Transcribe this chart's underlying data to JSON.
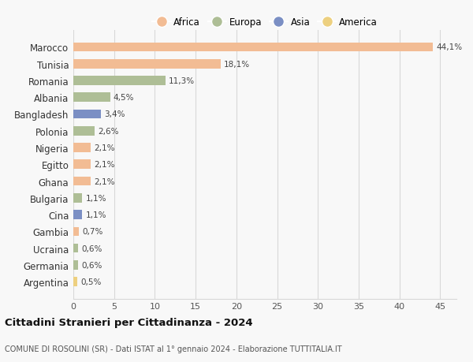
{
  "categories": [
    "Marocco",
    "Tunisia",
    "Romania",
    "Albania",
    "Bangladesh",
    "Polonia",
    "Nigeria",
    "Egitto",
    "Ghana",
    "Bulgaria",
    "Cina",
    "Gambia",
    "Ucraina",
    "Germania",
    "Argentina"
  ],
  "values": [
    44.1,
    18.1,
    11.3,
    4.5,
    3.4,
    2.6,
    2.1,
    2.1,
    2.1,
    1.1,
    1.1,
    0.7,
    0.6,
    0.6,
    0.5
  ],
  "labels": [
    "44,1%",
    "18,1%",
    "11,3%",
    "4,5%",
    "3,4%",
    "2,6%",
    "2,1%",
    "2,1%",
    "2,1%",
    "1,1%",
    "1,1%",
    "0,7%",
    "0,6%",
    "0,6%",
    "0,5%"
  ],
  "colors": [
    "#F2BC94",
    "#F2BC94",
    "#AEBE96",
    "#AEBE96",
    "#7B8FC4",
    "#AEBE96",
    "#F2BC94",
    "#F2BC94",
    "#F2BC94",
    "#AEBE96",
    "#7B8FC4",
    "#F2BC94",
    "#AEBE96",
    "#AEBE96",
    "#EDD080"
  ],
  "legend_labels": [
    "Africa",
    "Europa",
    "Asia",
    "America"
  ],
  "legend_colors": [
    "#F2BC94",
    "#AEBE96",
    "#7B8FC4",
    "#EDD080"
  ],
  "title": "Cittadini Stranieri per Cittadinanza - 2024",
  "subtitle": "COMUNE DI ROSOLINI (SR) - Dati ISTAT al 1° gennaio 2024 - Elaborazione TUTTITALIA.IT",
  "xlim": [
    0,
    47
  ],
  "xticks": [
    0,
    5,
    10,
    15,
    20,
    25,
    30,
    35,
    40,
    45
  ],
  "background_color": "#f8f8f8",
  "grid_color": "#d8d8d8",
  "bar_height": 0.55
}
